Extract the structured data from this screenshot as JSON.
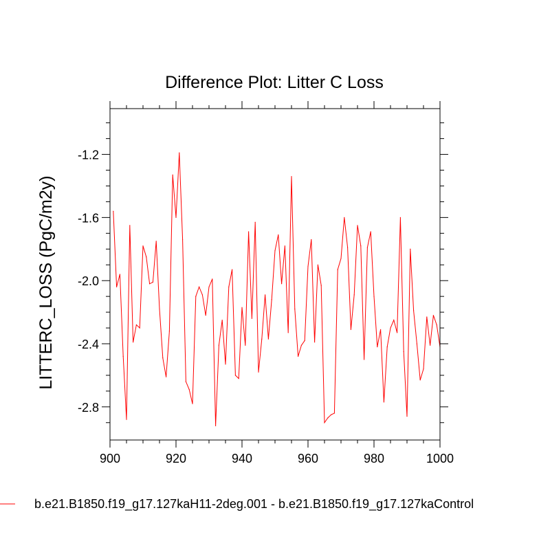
{
  "chart_data": {
    "type": "line",
    "title": "Difference Plot: Litter C Loss",
    "xlabel": "",
    "ylabel": "LITTERC_LOSS  (PgC/m2y)",
    "xlim": [
      900,
      1000
    ],
    "ylim": [
      -3.01,
      -0.91
    ],
    "x_ticks": [
      900,
      920,
      940,
      960,
      980,
      1000
    ],
    "x_tick_labels": [
      "900",
      "920",
      "940",
      "960",
      "980",
      "1000"
    ],
    "y_ticks": [
      -1.2,
      -1.6,
      -2.0,
      -2.4,
      -2.8
    ],
    "y_tick_labels": [
      "-1.2",
      "-1.6",
      "-2.0",
      "-2.4",
      "-2.8"
    ],
    "grid": false,
    "legend_position": "bottom",
    "series": [
      {
        "name": "b.e21.B1850.f19_g17.127kaH11-2deg.001 - b.e21.B1850.f19_g17.127kaControl",
        "color": "#ff0000",
        "x": [
          901,
          902,
          903,
          904,
          905,
          906,
          907,
          908,
          909,
          910,
          911,
          912,
          913,
          914,
          915,
          916,
          917,
          918,
          919,
          920,
          921,
          922,
          923,
          924,
          925,
          926,
          927,
          928,
          929,
          930,
          931,
          932,
          933,
          934,
          935,
          936,
          937,
          938,
          939,
          940,
          941,
          942,
          943,
          944,
          945,
          946,
          947,
          948,
          949,
          950,
          951,
          952,
          953,
          954,
          955,
          956,
          957,
          958,
          959,
          960,
          961,
          962,
          963,
          964,
          965,
          966,
          967,
          968,
          969,
          970,
          971,
          972,
          973,
          974,
          975,
          976,
          977,
          978,
          979,
          980,
          981,
          982,
          983,
          984,
          985,
          986,
          987,
          988,
          989,
          990,
          991,
          992,
          993,
          994,
          995,
          996,
          997,
          998,
          999,
          1000
        ],
        "values": [
          -1.56,
          -2.04,
          -1.96,
          -2.48,
          -2.88,
          -1.65,
          -2.39,
          -2.28,
          -2.3,
          -1.78,
          -1.85,
          -2.02,
          -2.01,
          -1.75,
          -2.18,
          -2.49,
          -2.61,
          -2.32,
          -1.33,
          -1.6,
          -1.19,
          -1.74,
          -2.64,
          -2.69,
          -2.78,
          -2.1,
          -2.04,
          -2.09,
          -2.22,
          -2.04,
          -1.99,
          -2.92,
          -2.41,
          -2.25,
          -2.53,
          -2.04,
          -1.93,
          -2.6,
          -2.62,
          -2.17,
          -2.41,
          -1.69,
          -2.24,
          -1.63,
          -2.58,
          -2.37,
          -2.09,
          -2.37,
          -2.12,
          -1.81,
          -1.71,
          -2.02,
          -1.78,
          -2.33,
          -1.34,
          -2.18,
          -2.48,
          -2.41,
          -2.38,
          -1.91,
          -1.74,
          -2.39,
          -1.9,
          -2.03,
          -2.9,
          -2.87,
          -2.85,
          -2.84,
          -1.93,
          -1.86,
          -1.6,
          -1.79,
          -2.31,
          -2.09,
          -1.65,
          -1.78,
          -2.5,
          -1.79,
          -1.69,
          -2.1,
          -2.42,
          -2.31,
          -2.77,
          -2.42,
          -2.3,
          -2.25,
          -2.33,
          -1.6,
          -2.45,
          -2.86,
          -1.8,
          -2.19,
          -2.4,
          -2.63,
          -2.56,
          -2.23,
          -2.41,
          -2.22,
          -2.28,
          -2.42
        ]
      }
    ]
  }
}
